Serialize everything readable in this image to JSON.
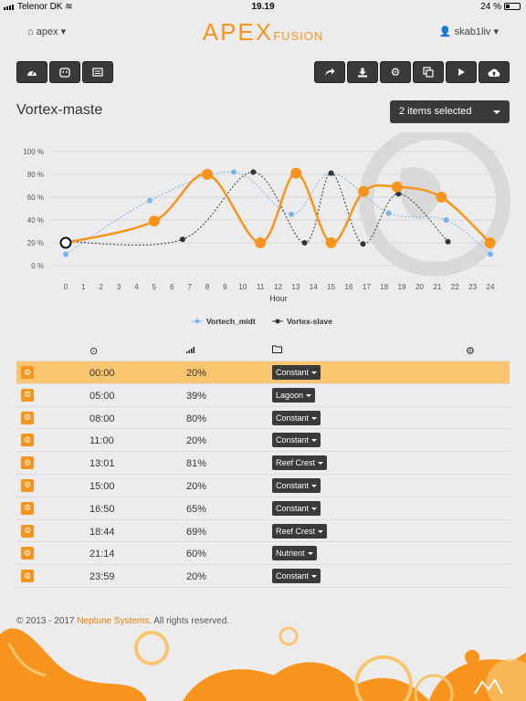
{
  "status": {
    "carrier": "Telenor DK",
    "time": "19.19",
    "battery": "24 %"
  },
  "nav": {
    "left_label": "apex",
    "logo_main": "APEX",
    "logo_sub": "FUSION",
    "user_label": "skab1liv"
  },
  "toolbar": {
    "left": [
      {
        "name": "dashboard-button",
        "icon": "dashboard-icon"
      },
      {
        "name": "outlet-button",
        "icon": "outlet-icon"
      },
      {
        "name": "list-button",
        "icon": "list-icon"
      }
    ],
    "right": [
      {
        "name": "share-button",
        "icon": "share-icon"
      },
      {
        "name": "download-button",
        "icon": "download-icon"
      },
      {
        "name": "settings-button",
        "icon": "gear-icon"
      },
      {
        "name": "copy-button",
        "icon": "copy-icon"
      },
      {
        "name": "play-button",
        "icon": "play-icon"
      },
      {
        "name": "upload-button",
        "icon": "cloud-upload-icon"
      }
    ]
  },
  "page": {
    "title": "Vortex-maste",
    "select_label": "2 items selected"
  },
  "chart_data": {
    "type": "line",
    "xlabel": "Hour",
    "ylabel": "",
    "x_ticks": [
      "0",
      "1",
      "2",
      "3",
      "4",
      "5",
      "6",
      "7",
      "8",
      "9",
      "10",
      "11",
      "12",
      "13",
      "14",
      "15",
      "16",
      "17",
      "18",
      "19",
      "20",
      "21",
      "22",
      "23",
      "24"
    ],
    "y_ticks": [
      "0 %",
      "20 %",
      "40 %",
      "60 %",
      "80 %",
      "100 %"
    ],
    "xlim": [
      0,
      24
    ],
    "ylim": [
      0,
      100
    ],
    "grid": "horizontal",
    "legend_position": "bottom",
    "series": [
      {
        "name": "Vortech_midt",
        "color": "#7cb5ec",
        "x": [
          0,
          4.75,
          9.5,
          12.75,
          15,
          18.25,
          21.5,
          24
        ],
        "y": [
          10,
          57,
          82,
          45,
          81,
          46,
          40,
          10
        ]
      },
      {
        "name": "Vortex-slave",
        "color": "#333333",
        "x": [
          0,
          6.6,
          10.6,
          13.5,
          15.0,
          16.8,
          18.8,
          21.6
        ],
        "y": [
          21,
          23,
          82,
          20,
          81,
          19,
          63,
          21
        ]
      },
      {
        "name": "",
        "color": "#f7941d",
        "x": [
          0,
          5,
          8,
          11,
          13.02,
          15,
          16.83,
          18.73,
          21.23,
          23.98
        ],
        "y": [
          20,
          39,
          80,
          20,
          81,
          20,
          65,
          69,
          60,
          20
        ]
      }
    ]
  },
  "table": {
    "rows": [
      {
        "time": "00:00",
        "pct": "20%",
        "mode": "Constant",
        "highlight": true
      },
      {
        "time": "05:00",
        "pct": "39%",
        "mode": "Lagoon"
      },
      {
        "time": "08:00",
        "pct": "80%",
        "mode": "Constant"
      },
      {
        "time": "11:00",
        "pct": "20%",
        "mode": "Constant"
      },
      {
        "time": "13:01",
        "pct": "81%",
        "mode": "Reef Crest"
      },
      {
        "time": "15:00",
        "pct": "20%",
        "mode": "Constant"
      },
      {
        "time": "16:50",
        "pct": "65%",
        "mode": "Constant"
      },
      {
        "time": "18:44",
        "pct": "69%",
        "mode": "Reef Crest"
      },
      {
        "time": "21:14",
        "pct": "60%",
        "mode": "Nutrient"
      },
      {
        "time": "23:59",
        "pct": "20%",
        "mode": "Constant"
      }
    ]
  },
  "footer": {
    "prefix": "© 2013 - 2017 ",
    "link": "Neptune Systems",
    "suffix": ". All rights reserved."
  },
  "colors": {
    "accent": "#f7941d",
    "dark_button": "#3a3a3a",
    "highlight_row": "#f9c56f"
  }
}
